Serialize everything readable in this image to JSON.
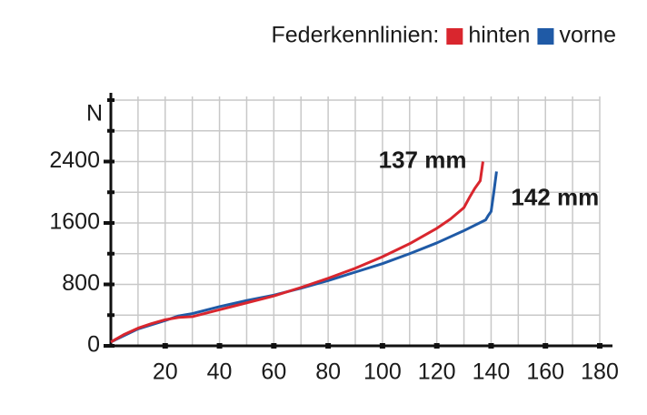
{
  "chart_data": {
    "type": "line",
    "legend_title": "Federkennlinien:",
    "ylabel": "N",
    "series": [
      {
        "name": "hinten",
        "color": "#d9262e",
        "x": [
          0,
          5,
          10,
          15,
          20,
          25,
          30,
          40,
          50,
          60,
          70,
          80,
          90,
          100,
          110,
          120,
          125,
          130,
          132,
          134,
          136,
          137
        ],
        "values": [
          50,
          150,
          230,
          290,
          340,
          370,
          380,
          470,
          560,
          650,
          760,
          880,
          1010,
          1160,
          1330,
          1530,
          1650,
          1800,
          1930,
          2050,
          2150,
          2400
        ]
      },
      {
        "name": "vorne",
        "color": "#1f5aa6",
        "x": [
          0,
          10,
          20,
          25,
          30,
          40,
          50,
          60,
          70,
          80,
          90,
          100,
          110,
          120,
          130,
          138,
          139,
          140,
          141,
          142
        ],
        "values": [
          50,
          220,
          330,
          390,
          420,
          510,
          590,
          660,
          750,
          850,
          960,
          1070,
          1200,
          1340,
          1500,
          1640,
          1700,
          1750,
          2000,
          2270
        ]
      }
    ],
    "annotations": [
      {
        "text": "137 mm",
        "x": 137,
        "y": 2400
      },
      {
        "text": "142 mm",
        "x": 142,
        "y": 2270
      }
    ],
    "xlim": [
      0,
      180
    ],
    "xticks": [
      20,
      40,
      60,
      80,
      100,
      120,
      140,
      160,
      180
    ],
    "x_grid": [
      10,
      20,
      30,
      40,
      50,
      60,
      70,
      80,
      90,
      100,
      110,
      120,
      130,
      140,
      150,
      160,
      170,
      180
    ],
    "ylim": [
      0,
      3200
    ],
    "yticks": [
      0,
      800,
      1600,
      2400
    ],
    "y_grid": [
      400,
      800,
      1200,
      1600,
      2000,
      2400,
      2800,
      3200
    ],
    "grid": true
  }
}
